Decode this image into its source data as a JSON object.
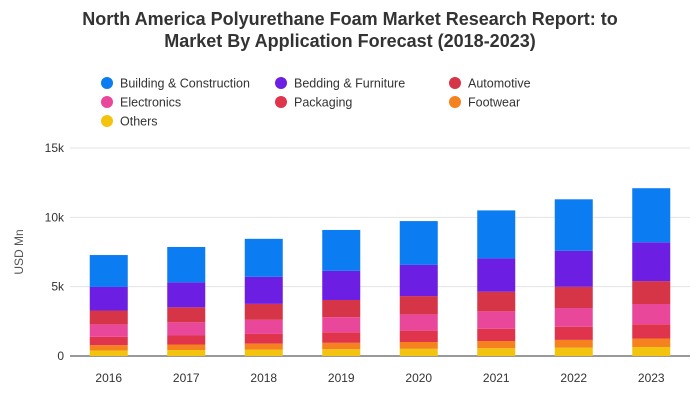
{
  "chart_data": {
    "type": "bar",
    "stacked": true,
    "title": "North America Polyurethane Foam Market Research Report: to\nMarket By Application Forecast (2018-2023)",
    "ylabel": "USD Mn",
    "ylim": [
      0,
      15000
    ],
    "yticks": [
      {
        "value": 0,
        "label": "0"
      },
      {
        "value": 5000,
        "label": "5k"
      },
      {
        "value": 10000,
        "label": "10k"
      },
      {
        "value": 15000,
        "label": "15k"
      }
    ],
    "grid": true,
    "legend_position": "top-left",
    "categories": [
      "2016",
      "2017",
      "2018",
      "2019",
      "2020",
      "2021",
      "2022",
      "2023"
    ],
    "series": [
      {
        "name": "Others",
        "color": "#f2c40f",
        "values": [
          400,
          430,
          460,
          490,
          520,
          560,
          600,
          650
        ]
      },
      {
        "name": "Footwear",
        "color": "#f5821f",
        "values": [
          380,
          400,
          430,
          460,
          490,
          520,
          560,
          610
        ]
      },
      {
        "name": "Packaging",
        "color": "#e0344c",
        "values": [
          600,
          650,
          700,
          760,
          820,
          880,
          950,
          1030
        ]
      },
      {
        "name": "Electronics",
        "color": "#e9489a",
        "values": [
          900,
          950,
          1020,
          1090,
          1170,
          1260,
          1350,
          1460
        ]
      },
      {
        "name": "Automotive",
        "color": "#d63447",
        "values": [
          1000,
          1080,
          1150,
          1240,
          1320,
          1420,
          1530,
          1650
        ]
      },
      {
        "name": "Bedding & Furniture",
        "color": "#6c1fe3",
        "values": [
          1700,
          1800,
          1950,
          2100,
          2250,
          2400,
          2600,
          2800
        ]
      },
      {
        "name": "Building & Construction",
        "color": "#0b7cf1",
        "values": [
          2300,
          2550,
          2740,
          2950,
          3160,
          3460,
          3710,
          3900
        ]
      }
    ]
  }
}
